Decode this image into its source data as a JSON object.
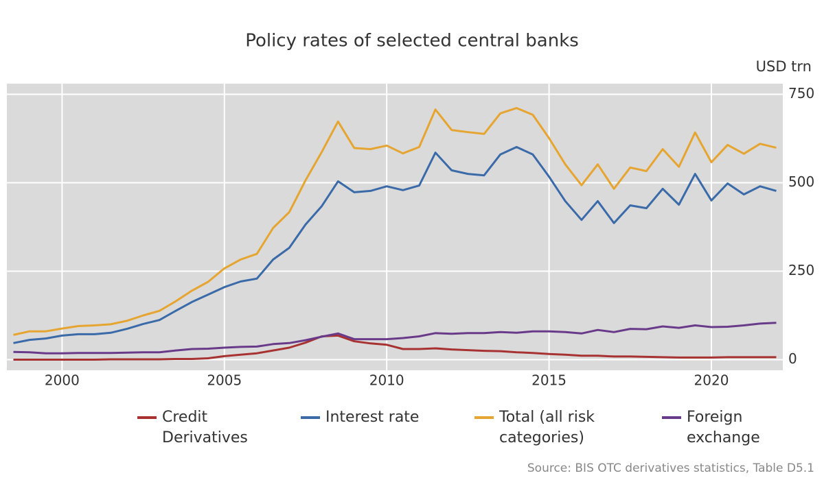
{
  "chart_data": {
    "type": "line",
    "title": "Policy rates of selected central banks",
    "y_label": "USD trn",
    "source": "Source: BIS OTC derivatives statistics, Table D5.1",
    "x": [
      1998.5,
      1999,
      1999.5,
      2000,
      2000.5,
      2001,
      2001.5,
      2002,
      2002.5,
      2003,
      2003.5,
      2004,
      2004.5,
      2005,
      2005.5,
      2006,
      2006.5,
      2007,
      2007.5,
      2008,
      2008.5,
      2009,
      2009.5,
      2010,
      2010.5,
      2011,
      2011.5,
      2012,
      2012.5,
      2013,
      2013.5,
      2014,
      2014.5,
      2015,
      2015.5,
      2016,
      2016.5,
      2017,
      2017.5,
      2018,
      2018.5,
      2019,
      2019.5,
      2020,
      2020.5,
      2021,
      2021.5,
      2022
    ],
    "series": [
      {
        "name": "Credit Derivatives",
        "color": "#a83232",
        "values": [
          0,
          0,
          0,
          0,
          0,
          0,
          1,
          1,
          1,
          1,
          2,
          2,
          4,
          10,
          14,
          18,
          26,
          34,
          48,
          66,
          68,
          52,
          46,
          42,
          30,
          30,
          32,
          29,
          27,
          25,
          24,
          21,
          19,
          16,
          14,
          11,
          11,
          9,
          9,
          8,
          7,
          6,
          6,
          6,
          7,
          7,
          7,
          7
        ]
      },
      {
        "name": "Interest rate",
        "color": "#3a6aa8",
        "values": [
          47,
          56,
          60,
          68,
          72,
          72,
          76,
          87,
          101,
          112,
          138,
          163,
          184,
          205,
          221,
          229,
          283,
          316,
          382,
          434,
          504,
          473,
          477,
          490,
          479,
          492,
          585,
          535,
          525,
          521,
          580,
          601,
          580,
          517,
          448,
          395,
          448,
          386,
          436,
          428,
          483,
          438,
          525,
          450,
          498,
          467,
          490,
          477
        ]
      },
      {
        "name": "Total (all risk categories)",
        "color": "#e5a530",
        "values": [
          70,
          80,
          80,
          88,
          95,
          97,
          100,
          110,
          125,
          138,
          165,
          195,
          220,
          258,
          283,
          299,
          372,
          417,
          507,
          587,
          673,
          598,
          595,
          605,
          583,
          601,
          707,
          649,
          643,
          638,
          696,
          711,
          692,
          626,
          552,
          493,
          552,
          483,
          543,
          533,
          595,
          545,
          642,
          558,
          607,
          582,
          610,
          599
        ]
      },
      {
        "name": "Foreign exchange",
        "color": "#6a3a8a",
        "values": [
          22,
          21,
          18,
          18,
          19,
          19,
          19,
          20,
          21,
          21,
          26,
          30,
          31,
          34,
          36,
          37,
          44,
          47,
          55,
          65,
          74,
          58,
          58,
          58,
          61,
          66,
          75,
          73,
          75,
          75,
          78,
          76,
          80,
          80,
          78,
          74,
          84,
          78,
          87,
          86,
          94,
          90,
          97,
          92,
          93,
          97,
          102,
          104
        ]
      }
    ],
    "xlim": [
      1998.3,
      2022.2
    ],
    "xticks": [
      2000,
      2005,
      2010,
      2015,
      2020
    ],
    "ylim": [
      -30,
      780
    ],
    "yticks": [
      0,
      250,
      500,
      750
    ],
    "grid": true,
    "background": "#dadada"
  }
}
